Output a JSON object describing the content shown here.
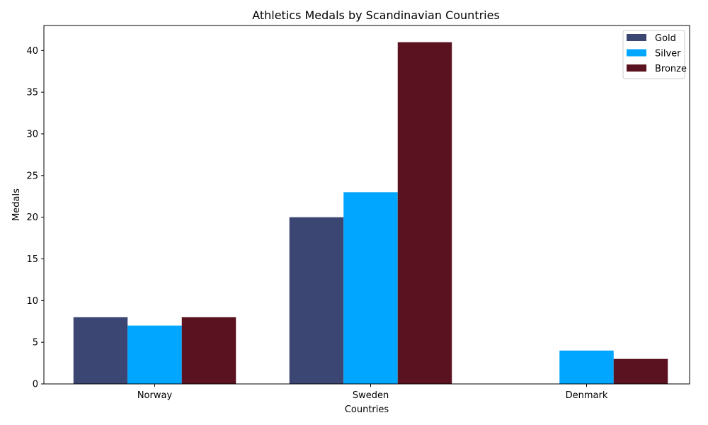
{
  "chart_data": {
    "type": "bar",
    "title": "Athletics Medals by Scandinavian Countries",
    "xlabel": "Countries",
    "ylabel": "Medals",
    "categories": [
      "Norway",
      "Sweden",
      "Denmark"
    ],
    "series": [
      {
        "name": "Gold",
        "color": "#3b4673",
        "values": [
          8,
          20,
          0
        ]
      },
      {
        "name": "Silver",
        "color": "#00a6ff",
        "values": [
          7,
          23,
          4
        ]
      },
      {
        "name": "Bronze",
        "color": "#5a1220",
        "values": [
          8,
          41,
          3
        ]
      }
    ],
    "ylim": [
      0,
      43
    ],
    "yticks": [
      0,
      5,
      10,
      15,
      20,
      25,
      30,
      35,
      40
    ],
    "grid": false,
    "legend_position": "top-right"
  }
}
